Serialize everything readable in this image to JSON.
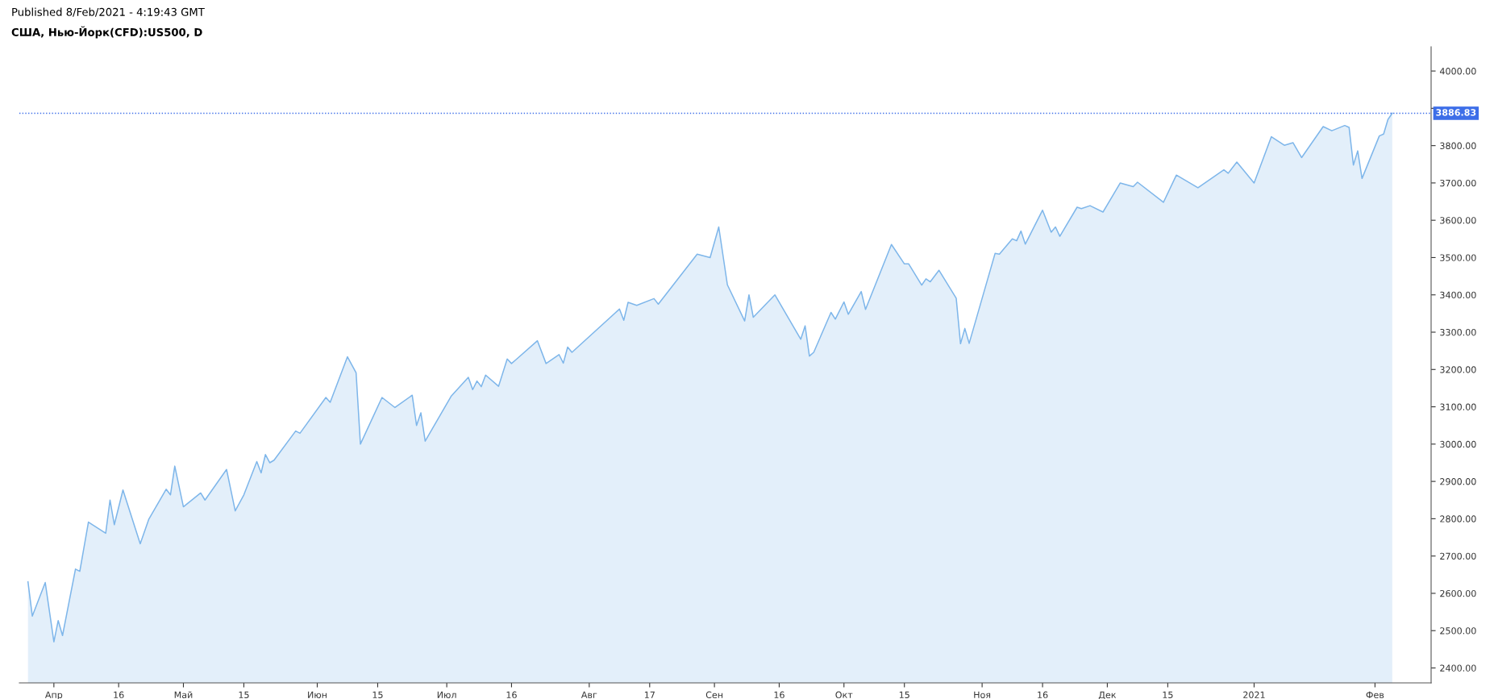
{
  "chart_data": {
    "type": "area",
    "title": "США, Нью-Йорк(CFD):US500, D",
    "annotations": [
      "Published 8/Feb/2021 - 4:19:43 GMT"
    ],
    "x": [
      "2020-03-26",
      "2020-03-27",
      "2020-03-30",
      "2020-04-01",
      "2020-04-02",
      "2020-04-03",
      "2020-04-06",
      "2020-04-07",
      "2020-04-09",
      "2020-04-13",
      "2020-04-14",
      "2020-04-15",
      "2020-04-17",
      "2020-04-21",
      "2020-04-23",
      "2020-04-27",
      "2020-04-28",
      "2020-04-29",
      "2020-05-01",
      "2020-05-05",
      "2020-05-06",
      "2020-05-11",
      "2020-05-13",
      "2020-05-15",
      "2020-05-18",
      "2020-05-19",
      "2020-05-20",
      "2020-05-21",
      "2020-05-22",
      "2020-05-27",
      "2020-05-28",
      "2020-06-03",
      "2020-06-04",
      "2020-06-08",
      "2020-06-10",
      "2020-06-11",
      "2020-06-16",
      "2020-06-19",
      "2020-06-23",
      "2020-06-24",
      "2020-06-25",
      "2020-06-26",
      "2020-07-02",
      "2020-07-06",
      "2020-07-07",
      "2020-07-08",
      "2020-07-09",
      "2020-07-10",
      "2020-07-13",
      "2020-07-15",
      "2020-07-16",
      "2020-07-17",
      "2020-07-22",
      "2020-07-24",
      "2020-07-27",
      "2020-07-28",
      "2020-07-29",
      "2020-07-30",
      "2020-08-10",
      "2020-08-11",
      "2020-08-12",
      "2020-08-14",
      "2020-08-18",
      "2020-08-19",
      "2020-08-28",
      "2020-08-31",
      "2020-09-02",
      "2020-09-04",
      "2020-09-08",
      "2020-09-09",
      "2020-09-10",
      "2020-09-15",
      "2020-09-21",
      "2020-09-22",
      "2020-09-23",
      "2020-09-24",
      "2020-09-28",
      "2020-09-29",
      "2020-10-01",
      "2020-10-02",
      "2020-10-05",
      "2020-10-06",
      "2020-10-12",
      "2020-10-15",
      "2020-10-16",
      "2020-10-19",
      "2020-10-20",
      "2020-10-21",
      "2020-10-23",
      "2020-10-27",
      "2020-10-28",
      "2020-10-29",
      "2020-10-30",
      "2020-11-05",
      "2020-11-06",
      "2020-11-09",
      "2020-11-10",
      "2020-11-11",
      "2020-11-12",
      "2020-11-16",
      "2020-11-18",
      "2020-11-19",
      "2020-11-20",
      "2020-11-24",
      "2020-11-25",
      "2020-11-27",
      "2020-11-30",
      "2020-12-04",
      "2020-12-07",
      "2020-12-08",
      "2020-12-14",
      "2020-12-17",
      "2020-12-22",
      "2020-12-28",
      "2020-12-29",
      "2020-12-31",
      "2021-01-04",
      "2021-01-08",
      "2021-01-11",
      "2021-01-13",
      "2021-01-15",
      "2021-01-20",
      "2021-01-22",
      "2021-01-25",
      "2021-01-26",
      "2021-01-27",
      "2021-01-28",
      "2021-01-29",
      "2021-02-02",
      "2021-02-03",
      "2021-02-04",
      "2021-02-05"
    ],
    "series": [
      {
        "color": "#7eb6ea",
        "values": [
          2631,
          2539,
          2629,
          2470,
          2527,
          2487,
          2665,
          2659,
          2791,
          2761,
          2850,
          2784,
          2877,
          2733,
          2799,
          2879,
          2864,
          2941,
          2832,
          2869,
          2850,
          2932,
          2821,
          2864,
          2953,
          2923,
          2972,
          2950,
          2957,
          3035,
          3029,
          3125,
          3112,
          3234,
          3191,
          3000,
          3125,
          3098,
          3131,
          3050,
          3084,
          3008,
          3128,
          3179,
          3146,
          3169,
          3154,
          3185,
          3155,
          3228,
          3216,
          3226,
          3277,
          3216,
          3240,
          3217,
          3260,
          3246,
          3362,
          3332,
          3380,
          3372,
          3390,
          3375,
          3509,
          3500,
          3582,
          3427,
          3330,
          3400,
          3340,
          3400,
          3281,
          3317,
          3236,
          3246,
          3353,
          3335,
          3381,
          3348,
          3409,
          3361,
          3535,
          3483,
          3483,
          3426,
          3443,
          3435,
          3466,
          3391,
          3269,
          3310,
          3270,
          3511,
          3509,
          3550,
          3545,
          3571,
          3536,
          3627,
          3568,
          3582,
          3557,
          3635,
          3631,
          3639,
          3622,
          3700,
          3690,
          3702,
          3648,
          3721,
          3687,
          3735,
          3726,
          3756,
          3700,
          3824,
          3801,
          3808,
          3768,
          3851,
          3840,
          3854,
          3849,
          3748,
          3786,
          3712,
          3826,
          3831,
          3870,
          3887
        ]
      }
    ],
    "xlim": [
      "2020-03-24",
      "2021-02-14"
    ],
    "xticks": [
      {
        "value": "2020-04-01",
        "label": "Апр"
      },
      {
        "value": "2020-04-16",
        "label": "16"
      },
      {
        "value": "2020-05-01",
        "label": "Май"
      },
      {
        "value": "2020-05-15",
        "label": "15"
      },
      {
        "value": "2020-06-01",
        "label": "Июн"
      },
      {
        "value": "2020-06-15",
        "label": "15"
      },
      {
        "value": "2020-07-01",
        "label": "Июл"
      },
      {
        "value": "2020-07-16",
        "label": "16"
      },
      {
        "value": "2020-08-03",
        "label": "Авг"
      },
      {
        "value": "2020-08-17",
        "label": "17"
      },
      {
        "value": "2020-09-01",
        "label": "Сен"
      },
      {
        "value": "2020-09-16",
        "label": "16"
      },
      {
        "value": "2020-10-01",
        "label": "Окт"
      },
      {
        "value": "2020-10-15",
        "label": "15"
      },
      {
        "value": "2020-11-02",
        "label": "Ноя"
      },
      {
        "value": "2020-11-16",
        "label": "16"
      },
      {
        "value": "2020-12-01",
        "label": "Дек"
      },
      {
        "value": "2020-12-15",
        "label": "15"
      },
      {
        "value": "2021-01-04",
        "label": "2021"
      },
      {
        "value": "2021-02-01",
        "label": "Фев"
      }
    ],
    "ylim": [
      2360,
      4065
    ],
    "yticks": [
      {
        "value": 2400,
        "label": "2400.00"
      },
      {
        "value": 2500,
        "label": "2500.00"
      },
      {
        "value": 2600,
        "label": "2600.00"
      },
      {
        "value": 2700,
        "label": "2700.00"
      },
      {
        "value": 2800,
        "label": "2800.00"
      },
      {
        "value": 2900,
        "label": "2900.00"
      },
      {
        "value": 3000,
        "label": "3000.00"
      },
      {
        "value": 3100,
        "label": "3100.00"
      },
      {
        "value": 3200,
        "label": "3200.00"
      },
      {
        "value": 3300,
        "label": "3300.00"
      },
      {
        "value": 3400,
        "label": "3400.00"
      },
      {
        "value": 3500,
        "label": "3500.00"
      },
      {
        "value": 3600,
        "label": "3600.00"
      },
      {
        "value": 3700,
        "label": "3700.00"
      },
      {
        "value": 3800,
        "label": "3800.00"
      },
      {
        "value": 3900,
        "label": null
      },
      {
        "value": 4000,
        "label": "4000.00"
      }
    ],
    "ref_lines": [
      {
        "axis": "y",
        "value": 3886.83,
        "label": "3886.83",
        "color": "#3d6ee8",
        "line_style": "dotted"
      }
    ],
    "grid": false,
    "legend": false
  }
}
